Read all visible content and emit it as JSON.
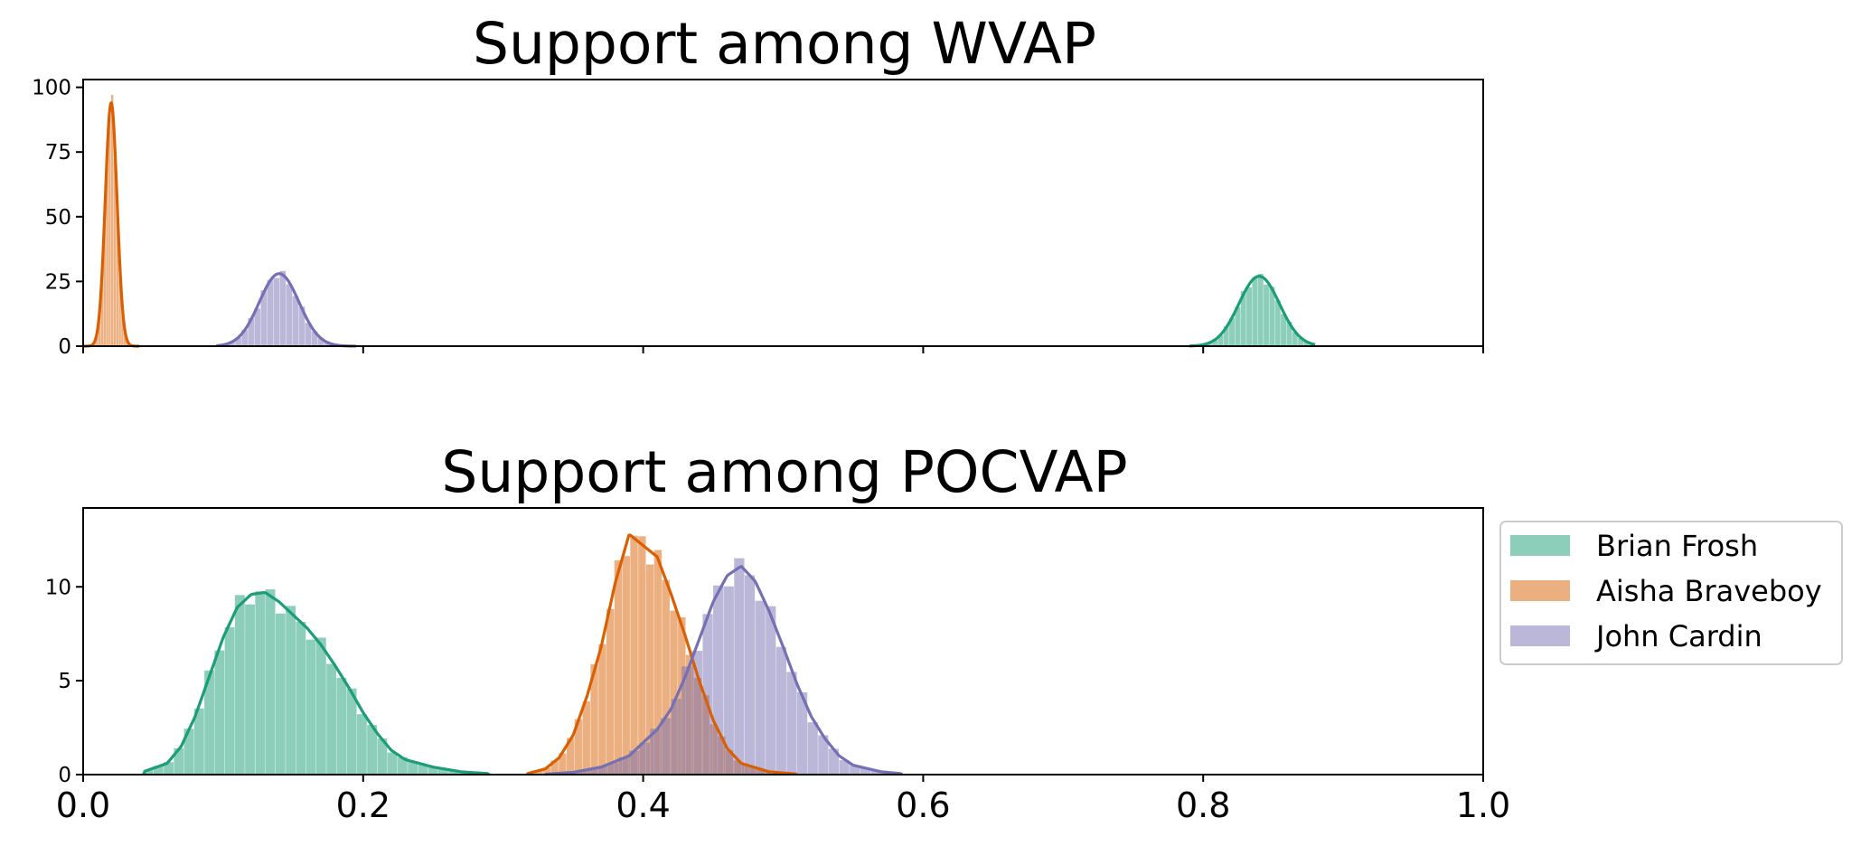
{
  "chart_data": [
    {
      "type": "area",
      "title": "Support among WVAP",
      "xlabel": "",
      "ylabel": "",
      "xlim": [
        0.0,
        1.0
      ],
      "ylim": [
        0,
        103
      ],
      "yticks": [
        0,
        25,
        50,
        75,
        100
      ],
      "ytick_labels": [
        "0",
        "25",
        "50",
        "75",
        "100"
      ],
      "xticks": [
        0.0,
        0.2,
        0.4,
        0.6,
        0.8,
        1.0
      ],
      "xtick_labels_shown": false,
      "grid": false,
      "legend": false,
      "series": [
        {
          "key": "frosh",
          "color": "#1b9e77",
          "mean": 0.84,
          "sd": 0.0145,
          "peak": 27,
          "xmin": 0.79,
          "xmax": 0.88
        },
        {
          "key": "braveboy",
          "color": "#d95f02",
          "mean": 0.02,
          "sd": 0.0042,
          "peak": 94,
          "xmin": 0.0,
          "xmax": 0.04
        },
        {
          "key": "cardin",
          "color": "#7570b3",
          "mean": 0.14,
          "sd": 0.0142,
          "peak": 28,
          "xmin": 0.095,
          "xmax": 0.195
        }
      ]
    },
    {
      "type": "area",
      "title": "Support among POCVAP",
      "xlabel": "",
      "ylabel": "",
      "xlim": [
        0.0,
        1.0
      ],
      "ylim": [
        0,
        14.2
      ],
      "yticks": [
        0,
        5,
        10
      ],
      "ytick_labels": [
        "0",
        "5",
        "10"
      ],
      "xticks": [
        0.0,
        0.2,
        0.4,
        0.6,
        0.8,
        1.0
      ],
      "xtick_labels": [
        "0.0",
        "0.2",
        "0.4",
        "0.6",
        "0.8",
        "1.0"
      ],
      "grid": false,
      "legend": true,
      "legend_position": "right-outside",
      "series": [
        {
          "name": "Brian Frosh",
          "key": "frosh",
          "color": "#1b9e77",
          "curve": [
            [
              0.043,
              0.15
            ],
            [
              0.06,
              0.6
            ],
            [
              0.07,
              1.5
            ],
            [
              0.08,
              3.1
            ],
            [
              0.09,
              5.2
            ],
            [
              0.1,
              7.3
            ],
            [
              0.11,
              8.9
            ],
            [
              0.12,
              9.6
            ],
            [
              0.13,
              9.7
            ],
            [
              0.14,
              9.2
            ],
            [
              0.15,
              8.5
            ],
            [
              0.16,
              7.8
            ],
            [
              0.17,
              6.9
            ],
            [
              0.18,
              5.8
            ],
            [
              0.19,
              4.6
            ],
            [
              0.2,
              3.3
            ],
            [
              0.21,
              2.2
            ],
            [
              0.22,
              1.3
            ],
            [
              0.23,
              0.8
            ],
            [
              0.25,
              0.4
            ],
            [
              0.27,
              0.15
            ],
            [
              0.29,
              0.05
            ]
          ]
        },
        {
          "name": "Aisha Braveboy",
          "key": "braveboy",
          "color": "#d95f02",
          "curve": [
            [
              0.317,
              0.05
            ],
            [
              0.33,
              0.3
            ],
            [
              0.34,
              0.9
            ],
            [
              0.35,
              2.1
            ],
            [
              0.36,
              4.2
            ],
            [
              0.37,
              6.8
            ],
            [
              0.38,
              10.2
            ],
            [
              0.39,
              12.8
            ],
            [
              0.4,
              12.2
            ],
            [
              0.41,
              11.6
            ],
            [
              0.42,
              9.6
            ],
            [
              0.43,
              7.4
            ],
            [
              0.44,
              5.0
            ],
            [
              0.45,
              2.9
            ],
            [
              0.46,
              1.4
            ],
            [
              0.47,
              0.6
            ],
            [
              0.49,
              0.15
            ],
            [
              0.51,
              0.03
            ]
          ]
        },
        {
          "name": "John Cardin",
          "key": "cardin",
          "color": "#7570b3",
          "curve": [
            [
              0.33,
              0.02
            ],
            [
              0.35,
              0.12
            ],
            [
              0.37,
              0.4
            ],
            [
              0.39,
              1.0
            ],
            [
              0.41,
              2.4
            ],
            [
              0.42,
              3.5
            ],
            [
              0.43,
              5.2
            ],
            [
              0.44,
              7.2
            ],
            [
              0.45,
              9.2
            ],
            [
              0.46,
              10.6
            ],
            [
              0.47,
              11.1
            ],
            [
              0.48,
              10.3
            ],
            [
              0.49,
              8.7
            ],
            [
              0.5,
              6.8
            ],
            [
              0.51,
              4.8
            ],
            [
              0.52,
              3.1
            ],
            [
              0.53,
              1.9
            ],
            [
              0.54,
              1.0
            ],
            [
              0.55,
              0.5
            ],
            [
              0.57,
              0.15
            ],
            [
              0.585,
              0.05
            ]
          ]
        }
      ]
    }
  ]
}
